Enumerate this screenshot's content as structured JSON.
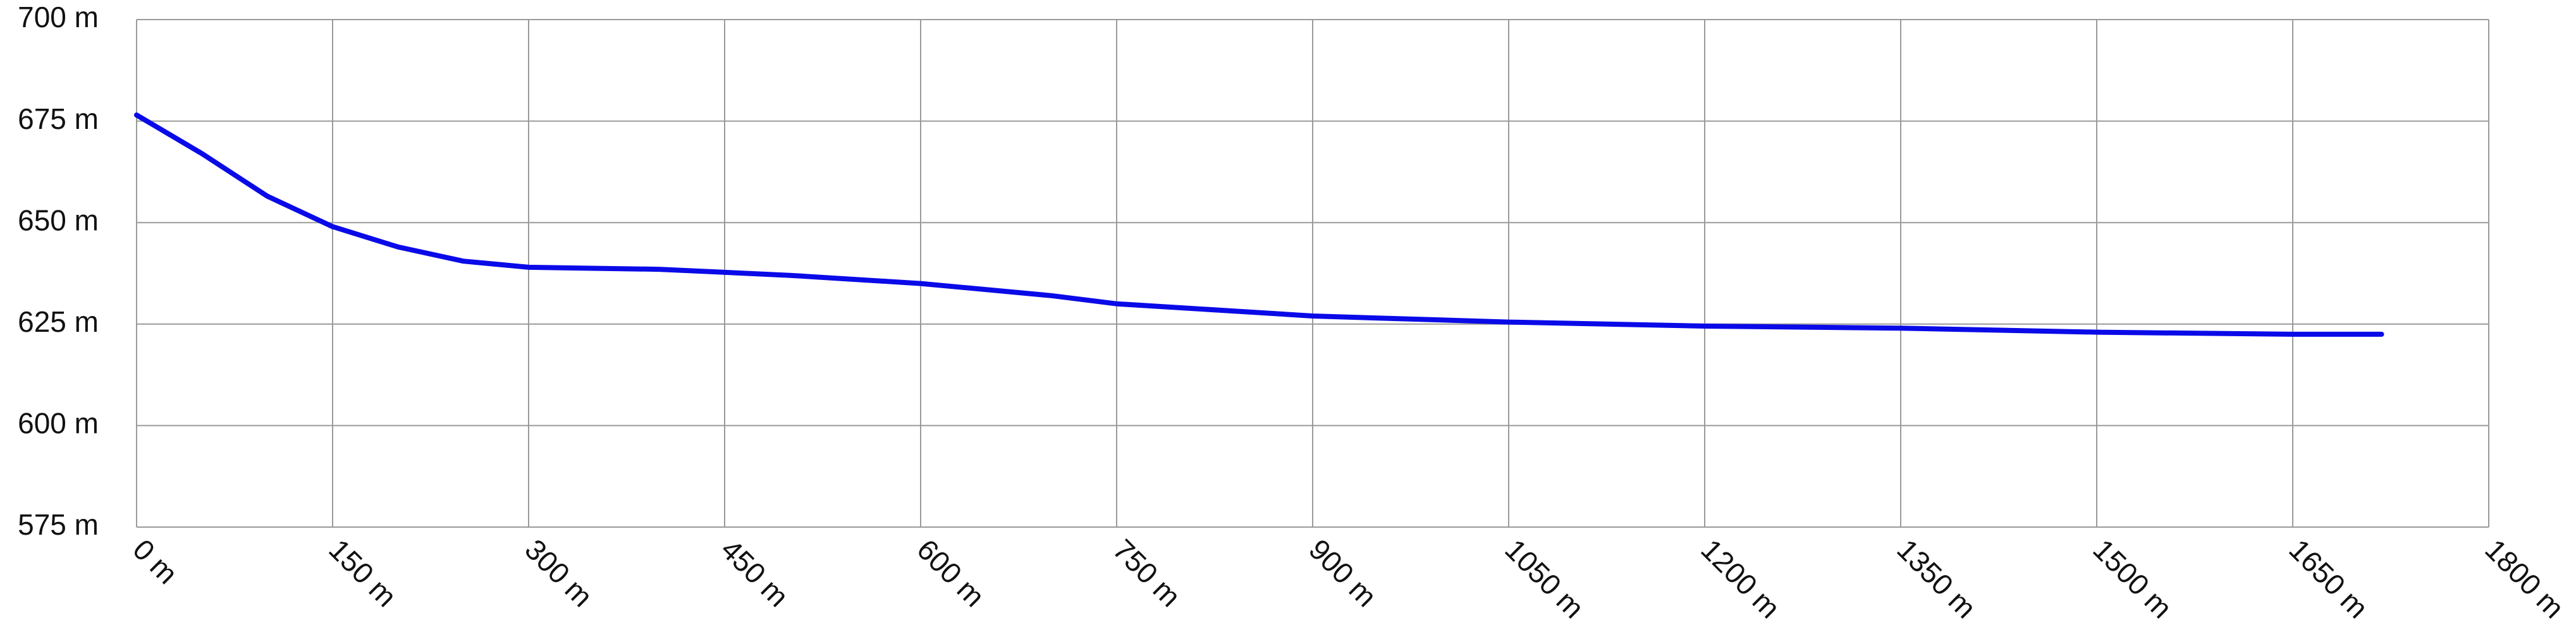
{
  "chart_data": {
    "type": "line",
    "color": "#0a0ae8",
    "x": [
      0,
      50,
      100,
      150,
      200,
      250,
      300,
      400,
      500,
      600,
      700,
      750,
      850,
      900,
      1050,
      1200,
      1350,
      1500,
      1650,
      1718
    ],
    "values": [
      676.5,
      667,
      656.5,
      649,
      644,
      640.5,
      639,
      638.5,
      637,
      635,
      632,
      630,
      628,
      627,
      625.5,
      624.5,
      624,
      623,
      622.5,
      622.5
    ],
    "xlim": [
      0,
      1800
    ],
    "xticks": [
      {
        "value": 0,
        "label": "0 m"
      },
      {
        "value": 150,
        "label": "150 m"
      },
      {
        "value": 300,
        "label": "300 m"
      },
      {
        "value": 450,
        "label": "450 m"
      },
      {
        "value": 600,
        "label": "600 m"
      },
      {
        "value": 750,
        "label": "750 m"
      },
      {
        "value": 900,
        "label": "900 m"
      },
      {
        "value": 1050,
        "label": "1050 m"
      },
      {
        "value": 1200,
        "label": "1200 m"
      },
      {
        "value": 1350,
        "label": "1350 m"
      },
      {
        "value": 1500,
        "label": "1500 m"
      },
      {
        "value": 1650,
        "label": "1650 m"
      },
      {
        "value": 1800,
        "label": "1800 m"
      }
    ],
    "ylim": [
      575,
      700
    ],
    "yticks": [
      {
        "value": 575,
        "label": "575 m"
      },
      {
        "value": 600,
        "label": "600 m"
      },
      {
        "value": 625,
        "label": "625 m"
      },
      {
        "value": 650,
        "label": "650 m"
      },
      {
        "value": 675,
        "label": "675 m"
      },
      {
        "value": 700,
        "label": "700 m"
      }
    ],
    "grid": true
  }
}
